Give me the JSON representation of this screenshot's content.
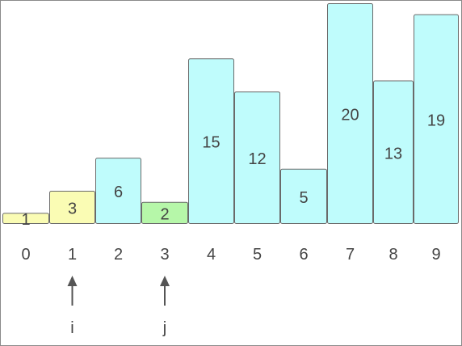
{
  "bars": [
    {
      "index_label": "0",
      "value": 1,
      "color": "yellow"
    },
    {
      "index_label": "1",
      "value": 3,
      "color": "yellow"
    },
    {
      "index_label": "2",
      "value": 6,
      "color": "cyan"
    },
    {
      "index_label": "3",
      "value": 2,
      "color": "green"
    },
    {
      "index_label": "4",
      "value": 15,
      "color": "cyan"
    },
    {
      "index_label": "5",
      "value": 12,
      "color": "cyan"
    },
    {
      "index_label": "6",
      "value": 5,
      "color": "cyan"
    },
    {
      "index_label": "7",
      "value": 20,
      "color": "cyan"
    },
    {
      "index_label": "8",
      "value": 13,
      "color": "cyan"
    },
    {
      "index_label": "9",
      "value": 19,
      "color": "cyan"
    }
  ],
  "colors": {
    "yellow": "#fafcb4",
    "cyan": "#bffcfc",
    "green": "#b6f7a9",
    "stroke": "#6a6a6a",
    "text": "#444444",
    "arrow": "#555555"
  },
  "pointers": [
    {
      "label": "i",
      "index": 1
    },
    {
      "label": "j",
      "index": 3
    }
  ]
}
